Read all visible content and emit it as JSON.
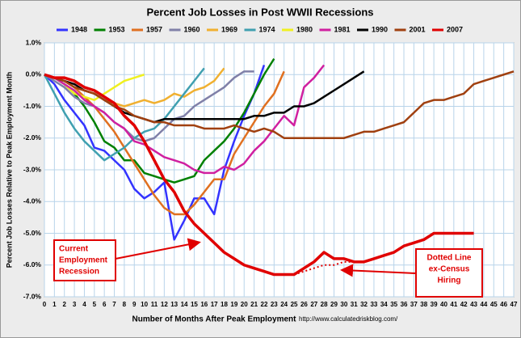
{
  "chart_data": {
    "type": "line",
    "title": "Percent Job Losses in Post WWII Recessions",
    "y_label": "Percent Job Losses Relative to Peak Employment Month",
    "x_label": "Number of Months After Peak Employment",
    "source": "http://www.calculatedriskblog.com/",
    "xlim": [
      0,
      47
    ],
    "xticks": [
      0,
      1,
      2,
      3,
      4,
      5,
      6,
      7,
      8,
      9,
      10,
      11,
      12,
      13,
      14,
      15,
      16,
      17,
      18,
      19,
      20,
      21,
      22,
      23,
      24,
      25,
      26,
      27,
      28,
      29,
      30,
      31,
      32,
      33,
      34,
      35,
      36,
      37,
      38,
      39,
      40,
      41,
      42,
      43,
      44,
      45,
      46,
      47
    ],
    "ylim": [
      -7,
      1
    ],
    "yticks": [
      {
        "value": 1,
        "label": "1.0%"
      },
      {
        "value": 0,
        "label": "0.0%"
      },
      {
        "value": -1,
        "label": "-1.0%"
      },
      {
        "value": -2,
        "label": "-2.0%"
      },
      {
        "value": -3,
        "label": "-3.0%"
      },
      {
        "value": -4,
        "label": "-4.0%"
      },
      {
        "value": -5,
        "label": "-5.0%"
      },
      {
        "value": -6,
        "label": "-6.0%"
      },
      {
        "value": -7,
        "label": "-7.0%"
      }
    ],
    "grid": true,
    "legend": "top",
    "series": [
      {
        "name": "1948",
        "color": "#3333ff",
        "x": [
          0,
          1,
          2,
          3,
          4,
          5,
          6,
          7,
          8,
          9,
          10,
          11,
          12,
          13,
          14,
          15,
          16,
          17,
          18,
          19,
          20,
          21,
          22
        ],
        "values": [
          0,
          -0.3,
          -0.8,
          -1.2,
          -1.6,
          -2.3,
          -2.4,
          -2.7,
          -3.0,
          -3.6,
          -3.9,
          -3.7,
          -3.4,
          -5.2,
          -4.6,
          -3.9,
          -3.9,
          -4.4,
          -3.0,
          -2.1,
          -1.3,
          -0.6,
          0.3
        ]
      },
      {
        "name": "1953",
        "color": "#008000",
        "x": [
          0,
          1,
          2,
          3,
          4,
          5,
          6,
          7,
          8,
          9,
          10,
          11,
          12,
          13,
          14,
          15,
          16,
          17,
          18,
          19,
          20,
          21,
          22,
          23
        ],
        "values": [
          0,
          -0.1,
          -0.3,
          -0.6,
          -1.0,
          -1.5,
          -2.1,
          -2.3,
          -2.7,
          -2.7,
          -3.1,
          -3.2,
          -3.3,
          -3.4,
          -3.3,
          -3.2,
          -2.7,
          -2.4,
          -2.1,
          -1.7,
          -1.2,
          -0.6,
          0.0,
          0.5
        ]
      },
      {
        "name": "1957",
        "color": "#e07020",
        "x": [
          0,
          1,
          2,
          3,
          4,
          5,
          6,
          7,
          8,
          9,
          10,
          11,
          12,
          13,
          14,
          15,
          16,
          17,
          18,
          19,
          20,
          21,
          22,
          23,
          24
        ],
        "values": [
          0,
          -0.1,
          -0.2,
          -0.4,
          -0.7,
          -1.0,
          -1.4,
          -1.8,
          -2.3,
          -2.8,
          -3.3,
          -3.8,
          -4.2,
          -4.4,
          -4.4,
          -4.1,
          -3.7,
          -3.3,
          -3.3,
          -2.5,
          -2.0,
          -1.5,
          -1.0,
          -0.6,
          0.1
        ]
      },
      {
        "name": "1960",
        "color": "#8080a8",
        "x": [
          0,
          1,
          2,
          3,
          4,
          5,
          6,
          7,
          8,
          9,
          10,
          11,
          12,
          13,
          14,
          15,
          16,
          17,
          18,
          19,
          20,
          21
        ],
        "values": [
          0,
          -0.2,
          -0.4,
          -0.7,
          -0.9,
          -1.0,
          -1.2,
          -1.5,
          -1.7,
          -2.0,
          -2.1,
          -2.0,
          -1.7,
          -1.4,
          -1.3,
          -1.0,
          -0.8,
          -0.6,
          -0.4,
          -0.1,
          0.1,
          0.1
        ]
      },
      {
        "name": "1969",
        "color": "#f0b030",
        "x": [
          0,
          1,
          2,
          3,
          4,
          5,
          6,
          7,
          8,
          9,
          10,
          11,
          12,
          13,
          14,
          15,
          16,
          17,
          18
        ],
        "values": [
          0,
          -0.1,
          -0.2,
          -0.4,
          -0.5,
          -0.6,
          -0.8,
          -0.9,
          -1.0,
          -0.9,
          -0.8,
          -0.9,
          -0.8,
          -0.6,
          -0.7,
          -0.5,
          -0.4,
          -0.2,
          0.2
        ]
      },
      {
        "name": "1974",
        "color": "#40a0b0",
        "x": [
          0,
          1,
          2,
          3,
          4,
          5,
          6,
          7,
          8,
          9,
          10,
          11,
          12,
          13,
          14,
          15,
          16
        ],
        "values": [
          0,
          -0.6,
          -1.2,
          -1.7,
          -2.1,
          -2.4,
          -2.7,
          -2.5,
          -2.3,
          -2.0,
          -1.8,
          -1.7,
          -1.4,
          -1.0,
          -0.6,
          -0.2,
          0.2
        ]
      },
      {
        "name": "1980",
        "color": "#f0f020",
        "x": [
          0,
          1,
          2,
          3,
          4,
          5,
          6,
          7,
          8,
          9,
          10
        ],
        "values": [
          0,
          -0.1,
          -0.3,
          -0.6,
          -0.7,
          -0.8,
          -0.6,
          -0.4,
          -0.2,
          -0.1,
          0.0
        ]
      },
      {
        "name": "1981",
        "color": "#d020a0",
        "x": [
          0,
          1,
          2,
          3,
          4,
          5,
          6,
          7,
          8,
          9,
          10,
          11,
          12,
          13,
          14,
          15,
          16,
          17,
          18,
          19,
          20,
          21,
          22,
          23,
          24,
          25,
          26,
          27,
          28
        ],
        "values": [
          0,
          -0.1,
          -0.3,
          -0.5,
          -0.8,
          -1.0,
          -1.2,
          -1.5,
          -1.7,
          -2.1,
          -2.2,
          -2.4,
          -2.6,
          -2.7,
          -2.8,
          -3.0,
          -3.1,
          -3.1,
          -2.9,
          -3.0,
          -2.8,
          -2.4,
          -2.1,
          -1.7,
          -1.3,
          -1.6,
          -0.4,
          -0.1,
          0.3
        ]
      },
      {
        "name": "1990",
        "color": "#000000",
        "x": [
          0,
          1,
          2,
          3,
          4,
          5,
          6,
          7,
          8,
          9,
          10,
          11,
          12,
          13,
          14,
          15,
          16,
          17,
          18,
          19,
          20,
          21,
          22,
          23,
          24,
          25,
          26,
          27,
          28,
          29,
          30,
          31,
          32
        ],
        "values": [
          0,
          -0.1,
          -0.2,
          -0.3,
          -0.5,
          -0.6,
          -0.8,
          -1.0,
          -1.2,
          -1.3,
          -1.4,
          -1.5,
          -1.4,
          -1.4,
          -1.4,
          -1.4,
          -1.4,
          -1.4,
          -1.4,
          -1.4,
          -1.4,
          -1.3,
          -1.3,
          -1.2,
          -1.2,
          -1.0,
          -1.0,
          -0.9,
          -0.7,
          -0.5,
          -0.3,
          -0.1,
          0.1
        ]
      },
      {
        "name": "2001",
        "color": "#a04010",
        "x": [
          0,
          1,
          2,
          3,
          4,
          5,
          6,
          7,
          8,
          9,
          10,
          11,
          12,
          13,
          14,
          15,
          16,
          17,
          18,
          19,
          20,
          21,
          22,
          23,
          24,
          25,
          26,
          27,
          28,
          29,
          30,
          31,
          32,
          33,
          34,
          35,
          36,
          37,
          38,
          39,
          40,
          41,
          42,
          43,
          44,
          45,
          46,
          47
        ],
        "values": [
          0,
          -0.1,
          -0.2,
          -0.4,
          -0.5,
          -0.6,
          -0.8,
          -1.0,
          -1.1,
          -1.3,
          -1.4,
          -1.5,
          -1.5,
          -1.6,
          -1.6,
          -1.6,
          -1.7,
          -1.7,
          -1.7,
          -1.6,
          -1.7,
          -1.8,
          -1.7,
          -1.8,
          -2.0,
          -2.0,
          -2.0,
          -2.0,
          -2.0,
          -2.0,
          -2.0,
          -1.9,
          -1.8,
          -1.8,
          -1.7,
          -1.6,
          -1.5,
          -1.2,
          -0.9,
          -0.8,
          -0.8,
          -0.7,
          -0.6,
          -0.3,
          -0.2,
          -0.1,
          0.0,
          0.1
        ]
      },
      {
        "name": "2007",
        "color": "#e00000",
        "x": [
          0,
          1,
          2,
          3,
          4,
          5,
          6,
          7,
          8,
          9,
          10,
          11,
          12,
          13,
          14,
          15,
          16,
          17,
          18,
          19,
          20,
          21,
          22,
          23,
          24,
          25,
          26,
          27,
          28,
          29,
          30,
          31,
          32,
          33,
          34,
          35,
          36,
          37,
          38,
          39,
          40,
          41,
          42,
          43
        ],
        "values": [
          0,
          -0.1,
          -0.1,
          -0.2,
          -0.4,
          -0.5,
          -0.7,
          -0.9,
          -1.3,
          -1.6,
          -2.1,
          -2.7,
          -3.3,
          -3.7,
          -4.3,
          -4.7,
          -5.0,
          -5.3,
          -5.6,
          -5.8,
          -6.0,
          -6.1,
          -6.2,
          -6.3,
          -6.3,
          -6.3,
          -6.1,
          -5.9,
          -5.6,
          -5.8,
          -5.8,
          -5.9,
          -5.9,
          -5.8,
          -5.7,
          -5.6,
          -5.4,
          -5.3,
          -5.2,
          -5.0,
          -5.0,
          -5.0,
          -5.0,
          -5.0
        ]
      }
    ],
    "ex_census": {
      "color": "#e00000",
      "x": [
        25,
        26,
        27,
        28,
        29,
        30,
        31
      ],
      "values": [
        -6.3,
        -6.2,
        -6.1,
        -6.0,
        -6.0,
        -5.9,
        -5.9
      ]
    },
    "annotations": [
      {
        "text": [
          "Current",
          "Employment",
          "Recession"
        ]
      },
      {
        "text": [
          "Dotted Line",
          "ex-Census",
          "Hiring"
        ]
      }
    ]
  }
}
